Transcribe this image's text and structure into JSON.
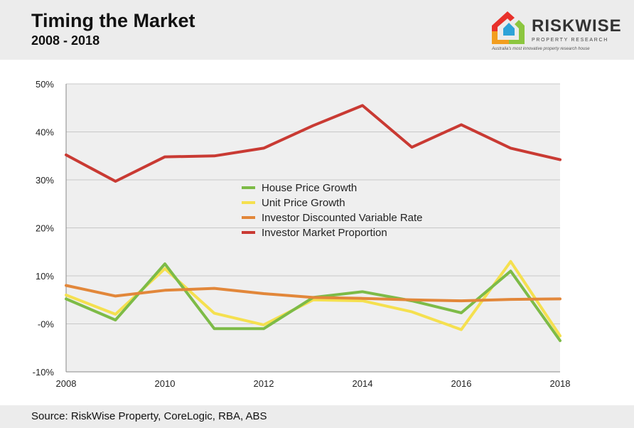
{
  "header": {
    "title": "Timing the Market",
    "subtitle": "2008 - 2018"
  },
  "logo": {
    "name": "RISKWISE",
    "subtitle": "PROPERTY RESEARCH",
    "tagline": "Australia's most innovative property research house",
    "colors": [
      "#e8312b",
      "#f29e1f",
      "#8cc63f",
      "#2ea3d8"
    ]
  },
  "footer": {
    "source": "Source: RiskWise Property, CoreLogic, RBA, ABS"
  },
  "chart_data": {
    "type": "line",
    "title": "Timing the Market",
    "subtitle": "2008 - 2018",
    "xlabel": "",
    "ylabel": "",
    "x": [
      2008,
      2009,
      2010,
      2011,
      2012,
      2013,
      2014,
      2015,
      2016,
      2017,
      2018
    ],
    "xticks": [
      "2008",
      "2010",
      "2012",
      "2014",
      "2016",
      "2018"
    ],
    "xlim": [
      2008,
      2018
    ],
    "ylim": [
      -10,
      50
    ],
    "yticks": [
      {
        "value": 50,
        "label": "50%"
      },
      {
        "value": 40,
        "label": "40%"
      },
      {
        "value": 30,
        "label": "30%"
      },
      {
        "value": 20,
        "label": "20%"
      },
      {
        "value": 10,
        "label": "10%"
      },
      {
        "value": 0,
        "label": "-0%"
      },
      {
        "value": -10,
        "label": "-10%"
      }
    ],
    "grid": true,
    "legend_position": "center",
    "series": [
      {
        "name": "Unit Price Growth",
        "color": "#f5e04f",
        "values": [
          6.0,
          2.0,
          11.5,
          2.2,
          -0.2,
          5.0,
          4.8,
          2.5,
          -1.2,
          13.0,
          -2.5
        ]
      },
      {
        "name": "House Price Growth",
        "color": "#7dbb47",
        "values": [
          5.2,
          0.8,
          12.5,
          -1.0,
          -1.0,
          5.5,
          6.7,
          4.8,
          2.3,
          11.0,
          -3.5
        ]
      },
      {
        "name": "Investor Discounted Variable Rate",
        "color": "#e2873a",
        "values": [
          8.0,
          5.8,
          7.0,
          7.4,
          6.3,
          5.5,
          5.3,
          5.0,
          4.8,
          5.1,
          5.2
        ]
      },
      {
        "name": "Investor Market Proportion",
        "color": "#c93a33",
        "values": [
          35.2,
          29.7,
          34.8,
          35.0,
          36.6,
          41.3,
          45.5,
          36.8,
          41.5,
          36.6,
          34.2
        ]
      }
    ],
    "legend_order": [
      "House Price Growth",
      "Unit Price Growth",
      "Investor Discounted Variable Rate",
      "Investor Market Proportion"
    ]
  }
}
